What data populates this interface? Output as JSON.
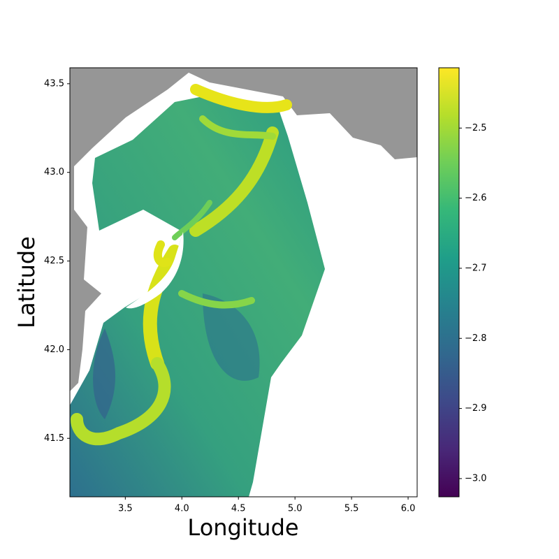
{
  "chart_data": {
    "type": "heatmap",
    "xlabel": "Longitude",
    "ylabel": "Latitude",
    "xlim": [
      3.01,
      6.08
    ],
    "xticks": [
      3.5,
      {
        "value": 4,
        "label": "4.0"
      },
      4.5,
      {
        "value": 5,
        "label": "5.0"
      },
      5.5,
      {
        "value": 6,
        "label": "6.0"
      }
    ],
    "ylim": [
      41.17,
      43.59
    ],
    "yticks": [
      41.5,
      {
        "value": 42,
        "label": "42.0"
      },
      42.5,
      {
        "value": 43,
        "label": "43.0"
      },
      43.5
    ],
    "colorbar": {
      "colormap": "viridis",
      "lim": [
        -3.026,
        -2.414
      ],
      "ticks": [
        {
          "value": -3.0,
          "label": "−3.0"
        },
        {
          "value": -2.9,
          "label": "−2.9"
        },
        {
          "value": -2.8,
          "label": "−2.8"
        },
        {
          "value": -2.7,
          "label": "−2.7"
        },
        {
          "value": -2.6,
          "label": "−2.6"
        },
        {
          "value": -2.5,
          "label": "−2.5"
        }
      ]
    }
  }
}
